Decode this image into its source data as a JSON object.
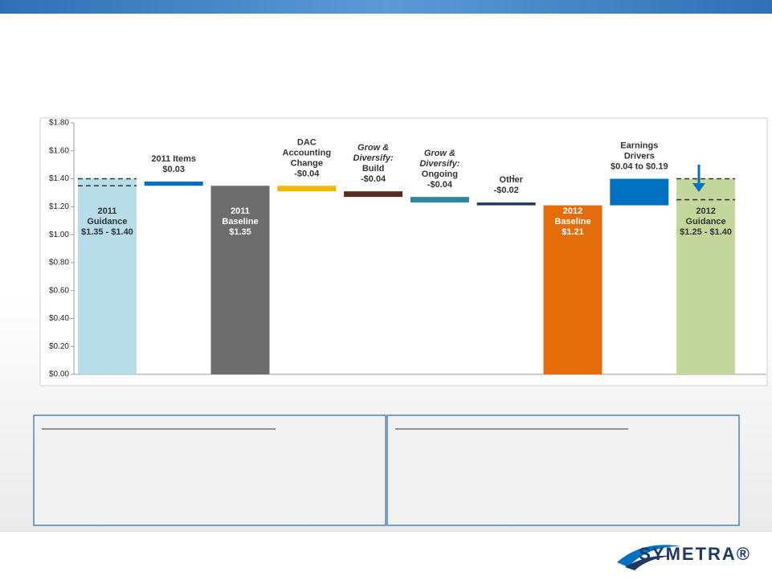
{
  "chart_data": {
    "type": "waterfall",
    "ylim": [
      0,
      1.8
    ],
    "yticks": [
      {
        "value": 0,
        "label": "$0.00"
      },
      {
        "value": 0.2,
        "label": "$0.20"
      },
      {
        "value": 0.4,
        "label": "$0.40"
      },
      {
        "value": 0.6,
        "label": "$0.60"
      },
      {
        "value": 0.8,
        "label": "$0.80"
      },
      {
        "value": 1.0,
        "label": "$1.00"
      },
      {
        "value": 1.2,
        "label": "$1.20"
      },
      {
        "value": 1.4,
        "label": "$1.40"
      },
      {
        "value": 1.6,
        "label": "$1.60"
      },
      {
        "value": 1.8,
        "label": "$1.80"
      }
    ],
    "bars": [
      {
        "kind": "range",
        "low": 1.35,
        "high": 1.4,
        "color": "#b7dde8",
        "label_lines": [
          "2011",
          "Guidance",
          "$1.35 - $1.40"
        ]
      },
      {
        "kind": "delta",
        "value": 0.03,
        "color": "#0070c0",
        "label_lines": [
          "2011 Items",
          "$0.03"
        ]
      },
      {
        "kind": "total",
        "value": 1.35,
        "color": "#6d6d6d",
        "label_lines": [
          "2011",
          "Baseline",
          "$1.35"
        ]
      },
      {
        "kind": "delta",
        "value": -0.04,
        "color": "#f2b800",
        "label_lines": [
          "DAC",
          "Accounting",
          "Change",
          "-$0.04"
        ]
      },
      {
        "kind": "delta",
        "value": -0.04,
        "color": "#5b2a22",
        "italic_lines": 2,
        "label_lines": [
          "Grow &",
          "Diversify:",
          "Build",
          "-$0.04"
        ]
      },
      {
        "kind": "delta",
        "value": -0.04,
        "color": "#31859c",
        "italic_lines": 2,
        "label_lines": [
          "Grow &",
          "Diversify:",
          "Ongoing",
          "-$0.04"
        ]
      },
      {
        "kind": "delta",
        "value": -0.02,
        "color": "#1f3864",
        "footnote": "1",
        "label_lines": [
          "Other",
          "-$0.02"
        ]
      },
      {
        "kind": "total",
        "value": 1.21,
        "color": "#e46c0a",
        "label_lines": [
          "2012",
          "Baseline",
          "$1.21"
        ]
      },
      {
        "kind": "delta-range",
        "low": 0.04,
        "high": 0.19,
        "color": "#0070c0",
        "label_lines": [
          "Earnings",
          "Drivers",
          "$0.04 to $0.19"
        ]
      },
      {
        "kind": "range",
        "low": 1.25,
        "high": 1.4,
        "color": "#c3d69b",
        "label_lines": [
          "2012",
          "Guidance",
          "$1.25 - $1.40"
        ]
      }
    ]
  },
  "logo": "SYMETRA®"
}
